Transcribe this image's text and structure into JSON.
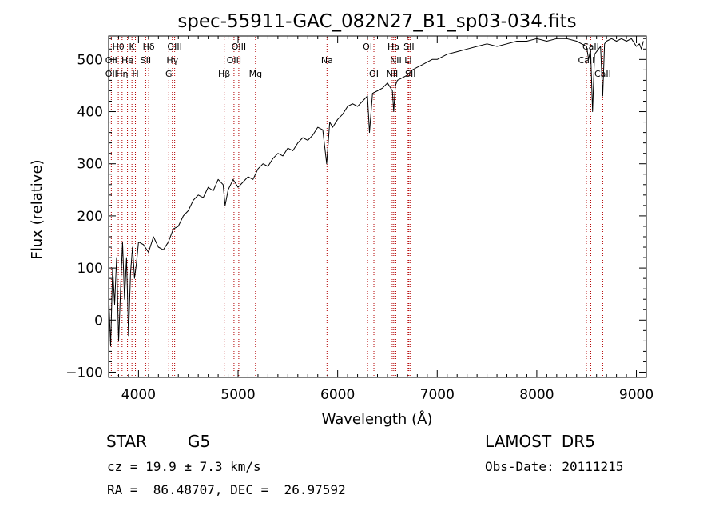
{
  "chart_data": {
    "type": "line",
    "title": "spec-55911-GAC_082N27_B1_sp03-034.fits",
    "xlabel": "Wavelength (Å)",
    "ylabel": "Flux (relative)",
    "xlim": [
      3700,
      9100
    ],
    "ylim": [
      -110,
      545
    ],
    "xticks": [
      4000,
      5000,
      6000,
      7000,
      8000,
      9000
    ],
    "xtick_labels": [
      "4000",
      "5000",
      "6000",
      "7000",
      "8000",
      "9000"
    ],
    "yticks": [
      -100,
      0,
      100,
      200,
      300,
      400,
      500
    ],
    "ytick_labels": [
      "−100",
      "0",
      "100",
      "200",
      "300",
      "400",
      "500"
    ],
    "grid": false,
    "series": [
      {
        "color": "#000000",
        "x": [
          3700,
          3720,
          3740,
          3760,
          3780,
          3800,
          3820,
          3840,
          3860,
          3880,
          3900,
          3920,
          3940,
          3960,
          3980,
          4000,
          4050,
          4100,
          4150,
          4200,
          4250,
          4300,
          4350,
          4400,
          4450,
          4500,
          4550,
          4600,
          4650,
          4700,
          4750,
          4800,
          4850,
          4870,
          4900,
          4950,
          5000,
          5050,
          5100,
          5150,
          5200,
          5250,
          5300,
          5350,
          5400,
          5450,
          5500,
          5550,
          5600,
          5650,
          5700,
          5750,
          5800,
          5850,
          5890,
          5920,
          5950,
          6000,
          6050,
          6100,
          6150,
          6200,
          6250,
          6300,
          6320,
          6350,
          6400,
          6450,
          6500,
          6550,
          6563,
          6580,
          6600,
          6650,
          6700,
          6750,
          6800,
          6850,
          6900,
          6950,
          7000,
          7100,
          7200,
          7300,
          7400,
          7500,
          7600,
          7700,
          7800,
          7900,
          8000,
          8100,
          8200,
          8300,
          8400,
          8450,
          8500,
          8520,
          8540,
          8560,
          8580,
          8600,
          8620,
          8640,
          8662,
          8680,
          8700,
          8750,
          8800,
          8850,
          8900,
          8950,
          9000,
          9030,
          9050,
          9070
        ],
        "y": [
          50,
          -50,
          100,
          30,
          120,
          -40,
          60,
          150,
          40,
          120,
          -30,
          90,
          140,
          80,
          110,
          150,
          145,
          130,
          160,
          140,
          135,
          150,
          175,
          180,
          200,
          210,
          230,
          240,
          235,
          255,
          248,
          270,
          260,
          220,
          250,
          270,
          255,
          265,
          275,
          270,
          290,
          300,
          295,
          310,
          320,
          315,
          330,
          325,
          340,
          350,
          345,
          355,
          370,
          365,
          300,
          380,
          370,
          385,
          395,
          410,
          415,
          410,
          420,
          430,
          360,
          435,
          440,
          445,
          455,
          440,
          400,
          450,
          460,
          465,
          470,
          480,
          485,
          490,
          495,
          500,
          500,
          510,
          515,
          520,
          525,
          530,
          525,
          530,
          535,
          535,
          540,
          535,
          540,
          540,
          535,
          530,
          525,
          500,
          520,
          400,
          510,
          515,
          520,
          525,
          430,
          530,
          535,
          540,
          535,
          540,
          535,
          540,
          525,
          530,
          520,
          535
        ]
      }
    ],
    "line_markers": {
      "row1": [
        {
          "label": "Hθ",
          "x": 3797
        },
        {
          "label": "K",
          "x": 3934
        },
        {
          "label": "Hδ",
          "x": 4102
        },
        {
          "label": "OIII",
          "x": 4363
        },
        {
          "label": "OIII",
          "x": 5007
        },
        {
          "label": "OI",
          "x": 6300
        },
        {
          "label": "Hα",
          "x": 6563
        },
        {
          "label": "SII",
          "x": 6716
        },
        {
          "label": "CaII",
          "x": 8542
        }
      ],
      "row2": [
        {
          "label": "OII",
          "x": 3727
        },
        {
          "label": "He",
          "x": 3889
        },
        {
          "label": "SII",
          "x": 4072
        },
        {
          "label": "Hγ",
          "x": 4340
        },
        {
          "label": "OIII",
          "x": 4959
        },
        {
          "label": "Na",
          "x": 5893
        },
        {
          "label": "NII",
          "x": 6584
        },
        {
          "label": "Li",
          "x": 6708
        },
        {
          "label": "CaII",
          "x": 8498
        }
      ],
      "row3": [
        {
          "label": "OII",
          "x": 3727
        },
        {
          "label": "Hη",
          "x": 3835
        },
        {
          "label": "H",
          "x": 3969
        },
        {
          "label": "G",
          "x": 4304
        },
        {
          "label": "Hβ",
          "x": 4861
        },
        {
          "label": "Mg",
          "x": 5175
        },
        {
          "label": "OI",
          "x": 6364
        },
        {
          "label": "NII",
          "x": 6548
        },
        {
          "label": "SII",
          "x": 6731
        },
        {
          "label": "CaII",
          "x": 8662
        }
      ],
      "color": "#b30000"
    }
  },
  "info": {
    "class": "STAR",
    "subclass": "G5",
    "survey": "LAMOST  DR5",
    "cz": "cz = 19.9 ± 7.3 km/s",
    "obsdate": "Obs-Date: 20111215",
    "radec": "RA =  86.48707, DEC =  26.97592"
  }
}
